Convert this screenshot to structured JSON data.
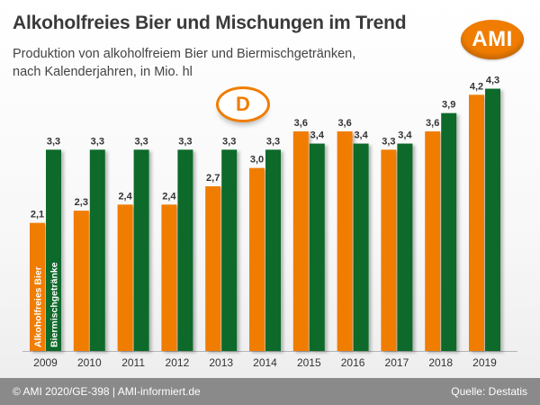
{
  "header": {
    "title": "Alkoholfreies Bier und Mischungen im Trend",
    "subtitle_line1": "Produktion von alkoholfreiem Bier und Biermischgetränken,",
    "subtitle_line2": "nach Kalenderjahren, in Mio. hl"
  },
  "logo": {
    "text": "AMI"
  },
  "badge": {
    "text": "D"
  },
  "footer": {
    "left": "© AMI 2020/GE-398 | AMI-informiert.de",
    "right": "Quelle: Destatis"
  },
  "colors": {
    "series1": "#f07d00",
    "series2": "#0c6b2a",
    "accent": "#f07d00",
    "footer": "#8a8a8a"
  },
  "chart_data": {
    "type": "bar",
    "categories": [
      "2009",
      "2010",
      "2011",
      "2012",
      "2013",
      "2014",
      "2015",
      "2016",
      "2017",
      "2018",
      "2019"
    ],
    "series": [
      {
        "name": "Alkoholfreies Bier",
        "values": [
          2.1,
          2.3,
          2.4,
          2.4,
          2.7,
          3.0,
          3.6,
          3.6,
          3.3,
          3.6,
          4.2
        ]
      },
      {
        "name": "Biermischgetränke",
        "values": [
          3.3,
          3.3,
          3.3,
          3.3,
          3.3,
          3.3,
          3.4,
          3.4,
          3.4,
          3.9,
          4.3
        ]
      }
    ],
    "value_labels": [
      [
        "2,1",
        "2,3",
        "2,4",
        "2,4",
        "2,7",
        "3,0",
        "3,6",
        "3,6",
        "3,3",
        "3,6",
        "4,2"
      ],
      [
        "3,3",
        "3,3",
        "3,3",
        "3,3",
        "3,3",
        "3,3",
        "3,4",
        "3,4",
        "3,4",
        "3,9",
        "4,3"
      ]
    ],
    "legend": "inside first bar pair, vertical text",
    "ylim": [
      0,
      4.5
    ],
    "grid": false,
    "xlabel": "",
    "ylabel": ""
  }
}
